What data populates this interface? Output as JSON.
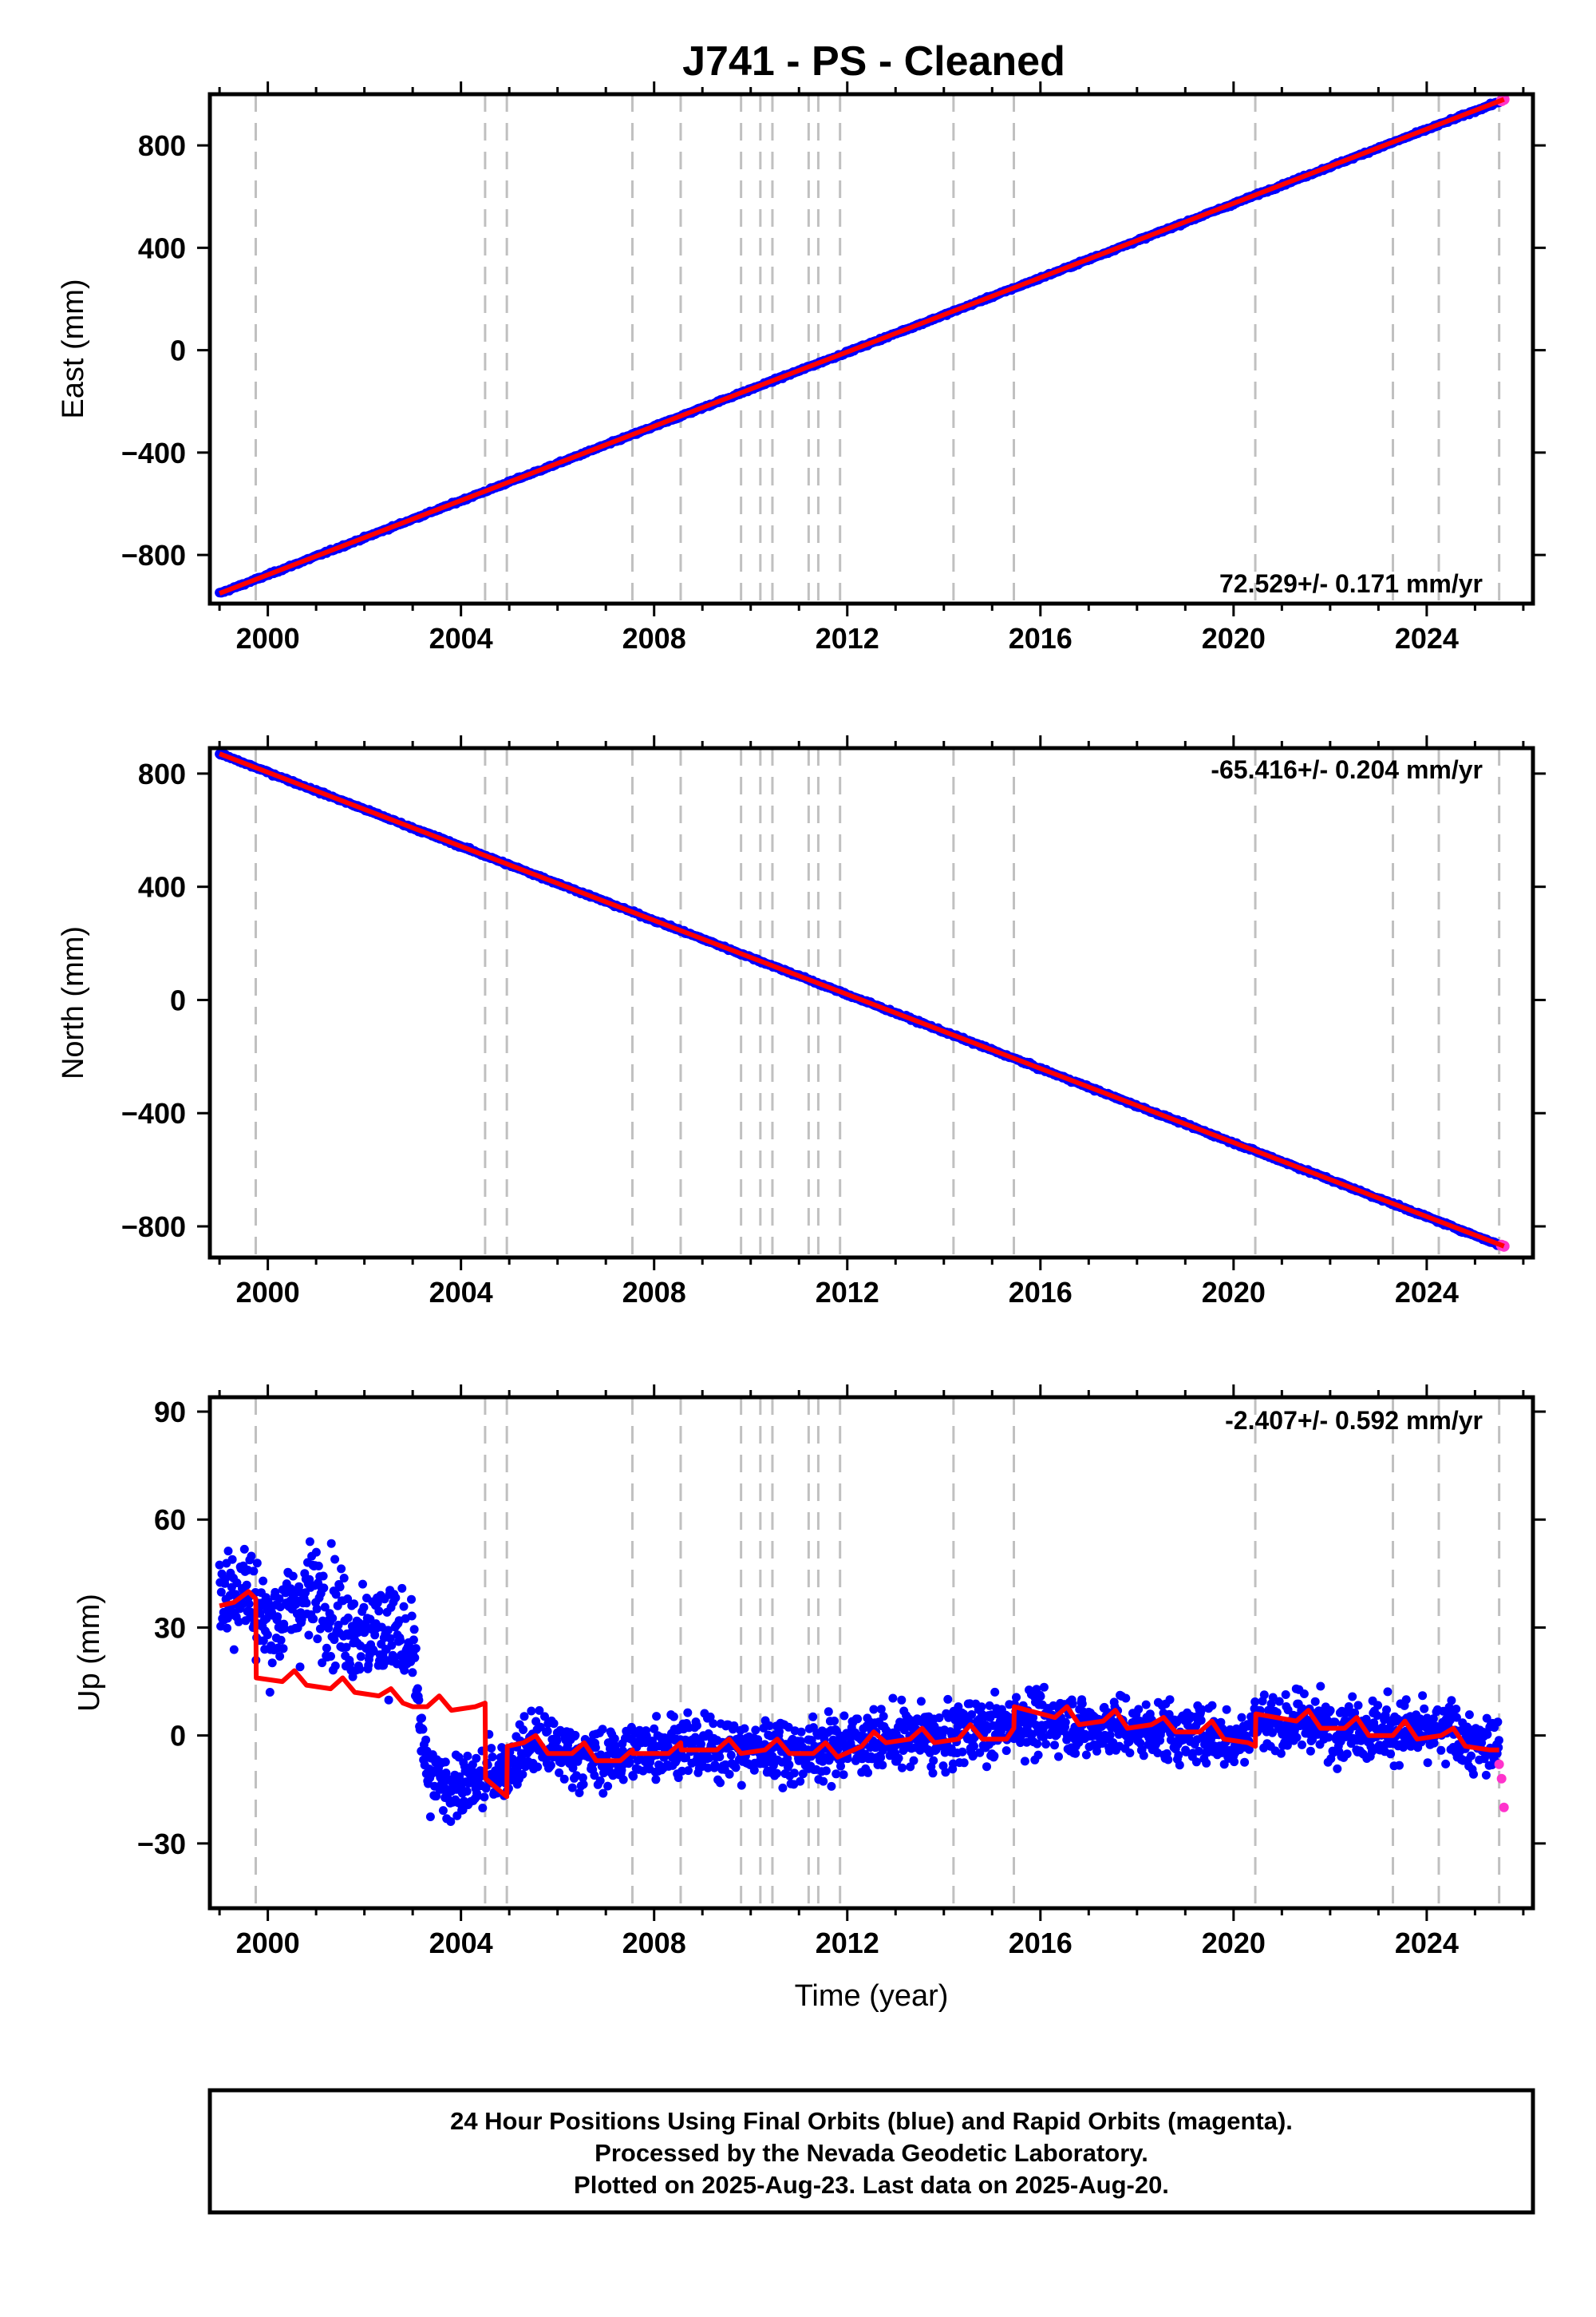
{
  "title": "J741  - PS - Cleaned",
  "xlabel": "Time (year)",
  "footer": {
    "line1": "24 Hour Positions Using Final Orbits (blue) and Rapid Orbits (magenta).",
    "line2": "Processed by the Nevada Geodetic Laboratory.",
    "line3": "Plotted on 2025-Aug-23. Last data on 2025-Aug-20."
  },
  "colors": {
    "final": "#0000ff",
    "rapid": "#ff33cc",
    "model": "#ff0000",
    "events": "#c0c0c0"
  },
  "chart_data": [
    {
      "type": "scatter",
      "component": "east",
      "ylabel": "East (mm)",
      "rate_label": "72.529+/- 0.171 mm/yr",
      "xlim": [
        1998.8,
        2026.2
      ],
      "ylim": [
        -990,
        1000
      ],
      "xticks": [
        2000,
        2004,
        2008,
        2012,
        2016,
        2020,
        2024
      ],
      "yticks": [
        -800,
        -400,
        0,
        400,
        800
      ],
      "ytick_labels": [
        "−800",
        "−400",
        "0",
        "400",
        "800"
      ],
      "trend": {
        "x": [
          1999.0,
          2025.6
        ],
        "y": [
          -950,
          980
        ]
      },
      "series": [
        {
          "name": "Final Orbits (blue)",
          "x": [
            1999.0,
            2000.0,
            2001.0,
            2002.0,
            2003.0,
            2004.0,
            2005.0,
            2006.0,
            2007.0,
            2008.0,
            2009.0,
            2010.0,
            2011.0,
            2012.0,
            2013.0,
            2014.0,
            2015.0,
            2016.0,
            2017.0,
            2018.0,
            2019.0,
            2020.0,
            2021.0,
            2022.0,
            2023.0,
            2024.0,
            2025.0,
            2025.5
          ],
          "y": [
            -950,
            -878,
            -805,
            -733,
            -660,
            -588,
            -515,
            -443,
            -370,
            -298,
            -225,
            -153,
            -80,
            -8,
            65,
            137,
            210,
            282,
            355,
            427,
            500,
            572,
            645,
            717,
            790,
            862,
            935,
            970
          ]
        },
        {
          "name": "Rapid Orbits (magenta)",
          "x": [
            2025.55,
            2025.6
          ],
          "y": [
            975,
            980
          ]
        }
      ]
    },
    {
      "type": "scatter",
      "component": "north",
      "ylabel": "North (mm)",
      "rate_label": "-65.416+/- 0.204 mm/yr",
      "xlim": [
        1998.8,
        2026.2
      ],
      "ylim": [
        -910,
        890
      ],
      "xticks": [
        2000,
        2004,
        2008,
        2012,
        2016,
        2020,
        2024
      ],
      "yticks": [
        -800,
        -400,
        0,
        400,
        800
      ],
      "ytick_labels": [
        "−800",
        "−400",
        "0",
        "400",
        "800"
      ],
      "trend": {
        "x": [
          1999.0,
          2025.6
        ],
        "y": [
          870,
          -870
        ]
      },
      "series": [
        {
          "name": "Final Orbits (blue)",
          "x": [
            1999.0,
            2000.0,
            2001.0,
            2002.0,
            2003.0,
            2004.0,
            2005.0,
            2006.0,
            2007.0,
            2008.0,
            2009.0,
            2010.0,
            2011.0,
            2012.0,
            2013.0,
            2014.0,
            2015.0,
            2016.0,
            2017.0,
            2018.0,
            2019.0,
            2020.0,
            2021.0,
            2022.0,
            2023.0,
            2024.0,
            2025.0,
            2025.5
          ],
          "y": [
            870,
            805,
            739,
            674,
            608,
            543,
            477,
            412,
            347,
            281,
            216,
            150,
            85,
            19,
            -46,
            -112,
            -177,
            -243,
            -308,
            -374,
            -439,
            -505,
            -570,
            -635,
            -701,
            -766,
            -832,
            -865
          ]
        },
        {
          "name": "Rapid Orbits (magenta)",
          "x": [
            2025.55,
            2025.6
          ],
          "y": [
            -867,
            -870
          ]
        }
      ]
    },
    {
      "type": "scatter",
      "component": "up",
      "ylabel": "Up (mm)",
      "rate_label": "-2.407+/- 0.592 mm/yr",
      "xlim": [
        1998.8,
        2026.2
      ],
      "ylim": [
        -48,
        94
      ],
      "xticks": [
        2000,
        2004,
        2008,
        2012,
        2016,
        2020,
        2024
      ],
      "yticks": [
        -30,
        0,
        30,
        60,
        90
      ],
      "ytick_labels": [
        "−30",
        "0",
        "30",
        "60",
        "90"
      ],
      "series": [
        {
          "name": "Final Orbits (blue)",
          "x": [
            1999.0,
            1999.5,
            2000.0,
            2000.5,
            2001.0,
            2001.5,
            2002.0,
            2002.5,
            2003.0,
            2003.3,
            2003.7,
            2004.0,
            2004.5,
            2005.0,
            2005.5,
            2006.0,
            2006.5,
            2007.0,
            2007.5,
            2008.0,
            2008.5,
            2009.0,
            2009.5,
            2010.0,
            2010.5,
            2011.0,
            2011.5,
            2012.0,
            2012.5,
            2013.0,
            2013.5,
            2014.0,
            2014.5,
            2015.0,
            2015.5,
            2016.0,
            2016.5,
            2017.0,
            2017.5,
            2018.0,
            2018.5,
            2019.0,
            2019.5,
            2020.0,
            2020.5,
            2021.0,
            2021.5,
            2022.0,
            2022.5,
            2023.0,
            2023.5,
            2024.0,
            2024.5,
            2025.0,
            2025.5
          ],
          "y": [
            38,
            42,
            30,
            36,
            40,
            33,
            28,
            30,
            22,
            -12,
            -14,
            -15,
            -12,
            -8,
            -2,
            -4,
            -6,
            -7,
            -5,
            -3,
            -2,
            -4,
            -3,
            -5,
            -3,
            -5,
            -4,
            -2,
            -1,
            -1,
            0,
            -2,
            2,
            1,
            5,
            3,
            4,
            2,
            3,
            1,
            2,
            0,
            1,
            -2,
            5,
            3,
            4,
            2,
            3,
            1,
            2,
            0,
            1,
            -3,
            -3
          ]
        },
        {
          "name": "Rapid Orbits (magenta)",
          "x": [
            2025.5,
            2025.55,
            2025.6
          ],
          "y": [
            -8,
            -12,
            -20
          ]
        }
      ],
      "model": {
        "x": [
          1999.0,
          1999.3,
          1999.6,
          1999.75,
          1999.76,
          2000.3,
          2000.55,
          2000.8,
          2001.3,
          2001.55,
          2001.8,
          2002.3,
          2002.55,
          2002.8,
          2003.0,
          2003.3,
          2003.55,
          2003.8,
          2004.3,
          2004.5,
          2004.51,
          2004.95,
          2004.96,
          2005.3,
          2005.55,
          2005.8,
          2006.3,
          2006.55,
          2006.8,
          2007.3,
          2007.55,
          2007.56,
          2008.3,
          2008.55,
          2008.56,
          2009.3,
          2009.55,
          2009.8,
          2010.3,
          2010.55,
          2010.8,
          2011.3,
          2011.55,
          2011.8,
          2012.3,
          2012.55,
          2012.8,
          2013.3,
          2013.55,
          2013.8,
          2014.3,
          2014.55,
          2014.8,
          2015.3,
          2015.45,
          2015.46,
          2016.3,
          2016.55,
          2016.8,
          2017.3,
          2017.55,
          2017.8,
          2018.3,
          2018.55,
          2018.8,
          2019.3,
          2019.55,
          2019.8,
          2020.3,
          2020.45,
          2020.46,
          2021.3,
          2021.55,
          2021.8,
          2022.3,
          2022.55,
          2022.8,
          2023.3,
          2023.55,
          2023.8,
          2024.3,
          2024.55,
          2024.8,
          2025.3,
          2025.5
        ],
        "y": [
          36,
          37,
          40,
          38,
          16,
          15,
          18,
          14,
          13,
          16,
          12,
          11,
          13,
          9,
          8,
          8,
          11,
          7,
          8,
          9,
          -12,
          -17,
          -3,
          -2,
          0,
          -5,
          -5,
          -2,
          -7,
          -7,
          -4,
          -5,
          -5,
          -2,
          -4,
          -4,
          -1,
          -5,
          -4,
          -1,
          -5,
          -5,
          -2,
          -6,
          -3,
          1,
          -2,
          -1,
          2,
          -2,
          -1,
          3,
          -1,
          -1,
          2,
          8,
          5,
          8,
          3,
          4,
          7,
          2,
          3,
          5,
          1,
          1,
          4,
          -1,
          -2,
          -3,
          6,
          4,
          7,
          2,
          2,
          5,
          0,
          0,
          4,
          -1,
          0,
          2,
          -3,
          -4,
          -4
        ]
      }
    }
  ],
  "events": [
    1999.75,
    2004.5,
    2004.95,
    2007.55,
    2008.55,
    2009.8,
    2010.2,
    2010.45,
    2011.2,
    2011.4,
    2011.85,
    2014.2,
    2015.45,
    2020.45,
    2023.3,
    2024.25,
    2025.5
  ]
}
